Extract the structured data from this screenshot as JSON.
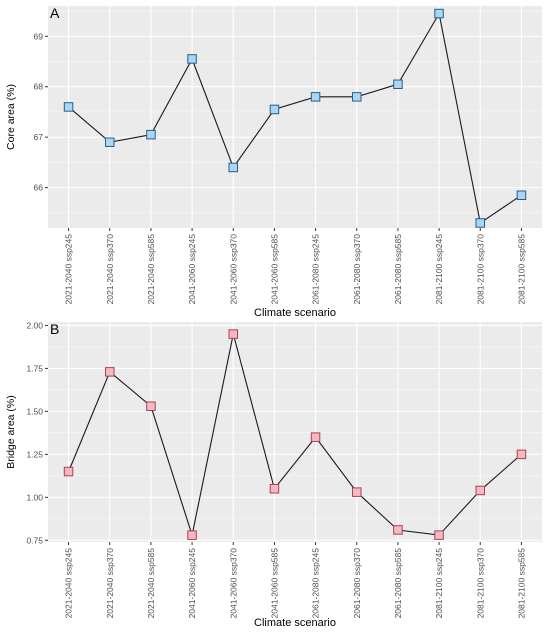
{
  "panels": [
    {
      "panel_label": "A",
      "chart_data": {
        "type": "line",
        "title": "",
        "xlabel": "Climate scenario",
        "ylabel": "Core area (%)",
        "categories": [
          "2021-2040 ssp245",
          "2021-2040 ssp370",
          "2021-2040 ssp585",
          "2041-2060 ssp245",
          "2041-2060 ssp370",
          "2041-2060 ssp585",
          "2061-2080 ssp245",
          "2061-2080 ssp370",
          "2061-2080 ssp585",
          "2081-2100 ssp245",
          "2081-2100 ssp370",
          "2081-2100 ssp585"
        ],
        "values": [
          67.6,
          66.9,
          67.05,
          68.55,
          66.4,
          67.55,
          67.8,
          67.8,
          68.05,
          69.45,
          65.3,
          65.85
        ],
        "ylim": [
          65.2,
          69.6
        ],
        "yticks": [
          66,
          67,
          68,
          69
        ],
        "ytick_labels": [
          "66",
          "67",
          "68",
          "69"
        ],
        "grid": true,
        "marker": "square",
        "marker_color": "#a9d6f5",
        "marker_stroke": "#2b5d87"
      }
    },
    {
      "panel_label": "B",
      "chart_data": {
        "type": "line",
        "title": "",
        "xlabel": "Climate scenario",
        "ylabel": "Bridge area (%)",
        "categories": [
          "2021-2040 ssp245",
          "2021-2040 ssp370",
          "2021-2040 ssp585",
          "2041-2060 ssp245",
          "2041-2060 ssp370",
          "2041-2060 ssp585",
          "2061-2080 ssp245",
          "2061-2080 ssp370",
          "2061-2080 ssp585",
          "2081-2100 ssp245",
          "2081-2100 ssp370",
          "2081-2100 ssp585"
        ],
        "values": [
          1.15,
          1.73,
          1.53,
          0.78,
          1.95,
          1.05,
          1.35,
          1.03,
          0.81,
          0.78,
          1.04,
          1.25
        ],
        "ylim": [
          0.74,
          2.02
        ],
        "yticks": [
          0.75,
          1.0,
          1.25,
          1.5,
          1.75,
          2.0
        ],
        "ytick_labels": [
          "0.75",
          "1.00",
          "1.25",
          "1.50",
          "1.75",
          "2.00"
        ],
        "grid": true,
        "marker": "square",
        "marker_color": "#f7b9c1",
        "marker_stroke": "#a8424f"
      }
    }
  ],
  "colors": {
    "panel_background": "#ebebeb",
    "grid_major": "#ffffff",
    "line": "#1a1a1a",
    "text": "#4d4d4d"
  }
}
